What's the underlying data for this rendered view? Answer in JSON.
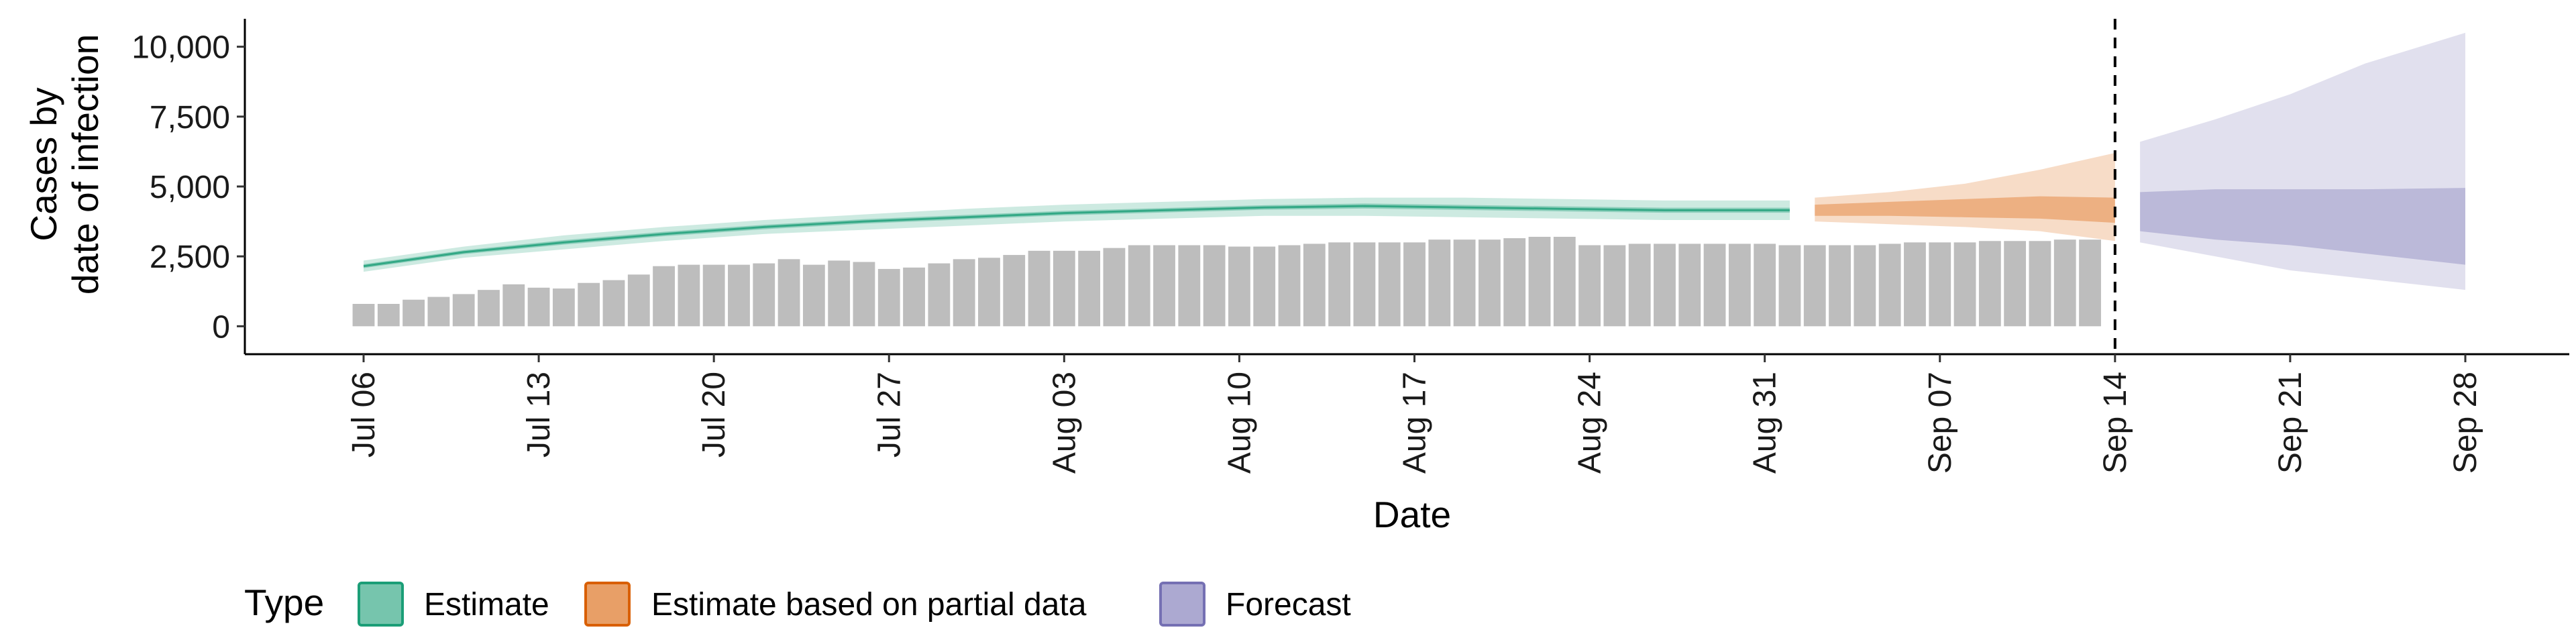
{
  "chart_data": {
    "type": "area",
    "xlabel": "Date",
    "ylabel": [
      "Cases by",
      "date of infection"
    ],
    "ylim": [
      -1000,
      11000
    ],
    "yticks": [
      0,
      2500,
      5000,
      7500,
      10000
    ],
    "ytick_labels": [
      "0",
      "2,500",
      "5,000",
      "7,500",
      "10,000"
    ],
    "xlim": [
      "2020-07-06",
      "2020-09-28"
    ],
    "xticks": [
      "2020-07-06",
      "2020-07-13",
      "2020-07-20",
      "2020-07-27",
      "2020-08-03",
      "2020-08-10",
      "2020-08-17",
      "2020-08-24",
      "2020-08-31",
      "2020-09-07",
      "2020-09-14",
      "2020-09-21",
      "2020-09-28"
    ],
    "xtick_labels": [
      "Jul 06",
      "Jul 13",
      "Jul 20",
      "Jul 27",
      "Aug 03",
      "Aug 10",
      "Aug 17",
      "Aug 24",
      "Aug 31",
      "Sep 07",
      "Sep 14",
      "Sep 21",
      "Sep 28"
    ],
    "vline_date": "2020-09-14",
    "grid": false,
    "legend": {
      "title": "Type",
      "position": "bottom-left",
      "items": [
        {
          "label": "Estimate",
          "color": "#1b9e77"
        },
        {
          "label": "Estimate based on partial data",
          "color": "#d95f02"
        },
        {
          "label": "Forecast",
          "color": "#7570b3"
        }
      ]
    },
    "reported_cases": {
      "start_date": "2020-07-06",
      "color": "#bdbdbd",
      "values": [
        800,
        800,
        950,
        1050,
        1150,
        1300,
        1500,
        1380,
        1350,
        1550,
        1650,
        1850,
        2150,
        2200,
        2200,
        2200,
        2250,
        2400,
        2200,
        2350,
        2300,
        2050,
        2100,
        2250,
        2400,
        2450,
        2550,
        2700,
        2700,
        2700,
        2800,
        2900,
        2900,
        2900,
        2900,
        2850,
        2850,
        2900,
        2950,
        3000,
        3000,
        3000,
        3000,
        3100,
        3100,
        3100,
        3150,
        3200,
        3200,
        2900,
        2900,
        2950,
        2950,
        2950,
        2950,
        2950,
        2950,
        2900,
        2900,
        2900,
        2900,
        2950,
        3000,
        3000,
        3000,
        3050,
        3050,
        3050,
        3100,
        3100
      ]
    },
    "series": [
      {
        "name": "Estimate",
        "color": "#1b9e77",
        "dates": [
          "2020-07-06",
          "2020-07-10",
          "2020-07-14",
          "2020-07-18",
          "2020-07-22",
          "2020-07-26",
          "2020-07-30",
          "2020-08-03",
          "2020-08-07",
          "2020-08-11",
          "2020-08-15",
          "2020-08-19",
          "2020-08-23",
          "2020-08-27",
          "2020-09-01"
        ],
        "median": [
          2150,
          2650,
          3000,
          3300,
          3550,
          3750,
          3900,
          4050,
          4150,
          4250,
          4300,
          4250,
          4200,
          4150,
          4150
        ],
        "lower90": [
          1950,
          2450,
          2750,
          3050,
          3300,
          3450,
          3600,
          3750,
          3850,
          3950,
          3950,
          3900,
          3850,
          3800,
          3800
        ],
        "upper90": [
          2350,
          2850,
          3250,
          3550,
          3800,
          4000,
          4200,
          4350,
          4450,
          4550,
          4600,
          4600,
          4550,
          4500,
          4500
        ],
        "lower50": [
          2080,
          2580,
          2920,
          3220,
          3470,
          3670,
          3820,
          3970,
          4070,
          4170,
          4210,
          4160,
          4110,
          4060,
          4060
        ],
        "upper50": [
          2220,
          2720,
          3080,
          3380,
          3630,
          3830,
          3980,
          4130,
          4230,
          4330,
          4390,
          4340,
          4290,
          4240,
          4240
        ]
      },
      {
        "name": "Estimate based on partial data",
        "color": "#d95f02",
        "dates": [
          "2020-09-02",
          "2020-09-05",
          "2020-09-08",
          "2020-09-11",
          "2020-09-14"
        ],
        "median": [
          4150,
          4200,
          4250,
          4250,
          4150
        ],
        "lower90": [
          3750,
          3650,
          3550,
          3400,
          3050
        ],
        "upper90": [
          4600,
          4800,
          5100,
          5600,
          6200
        ],
        "lower50": [
          3950,
          3950,
          3900,
          3850,
          3700
        ],
        "upper50": [
          4350,
          4450,
          4550,
          4650,
          4600
        ]
      },
      {
        "name": "Forecast",
        "color": "#7570b3",
        "dates": [
          "2020-09-15",
          "2020-09-18",
          "2020-09-21",
          "2020-09-24",
          "2020-09-28"
        ],
        "median": [
          4100,
          4050,
          4000,
          3950,
          3900
        ],
        "lower90": [
          3000,
          2500,
          2000,
          1700,
          1300
        ],
        "upper90": [
          6600,
          7400,
          8300,
          9400,
          10500
        ],
        "lower50": [
          3400,
          3100,
          2900,
          2600,
          2200
        ],
        "upper50": [
          4800,
          4900,
          4900,
          4900,
          4950
        ]
      }
    ]
  }
}
